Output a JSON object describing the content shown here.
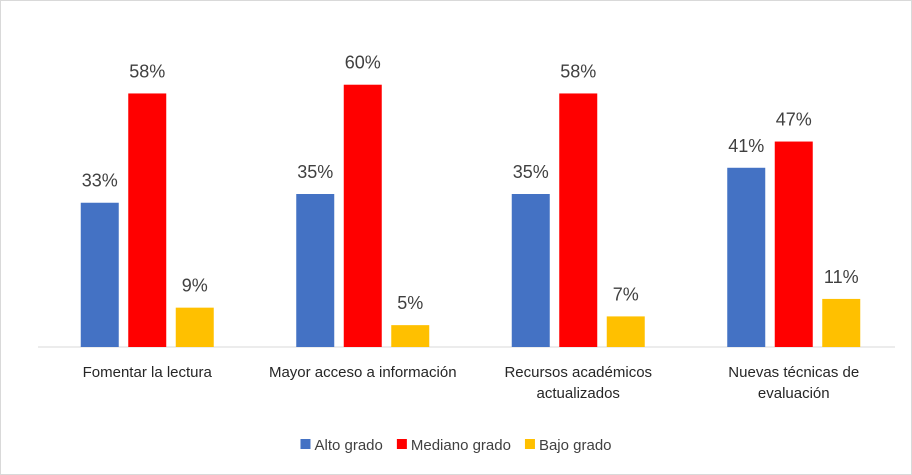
{
  "chart_data": {
    "type": "bar",
    "categories": [
      "Fomentar la lectura",
      "Mayor acceso a información",
      "Recursos académicos actualizados",
      "Nuevas técnicas de evaluación"
    ],
    "series": [
      {
        "name": "Alto grado",
        "color": "#4472c4",
        "values": [
          33,
          35,
          35,
          41
        ],
        "value_labels": [
          "33%",
          "35%",
          "35%",
          "41%"
        ]
      },
      {
        "name": "Mediano grado",
        "color": "#ff0000",
        "values": [
          58,
          60,
          58,
          47
        ],
        "value_labels": [
          "58%",
          "60%",
          "58%",
          "47%"
        ]
      },
      {
        "name": "Bajo grado",
        "color": "#ffc000",
        "values": [
          9,
          5,
          7,
          11
        ],
        "value_labels": [
          "9%",
          "5%",
          "7%",
          "11%"
        ]
      }
    ],
    "ylim": [
      0,
      70
    ],
    "legend": "bottom"
  }
}
